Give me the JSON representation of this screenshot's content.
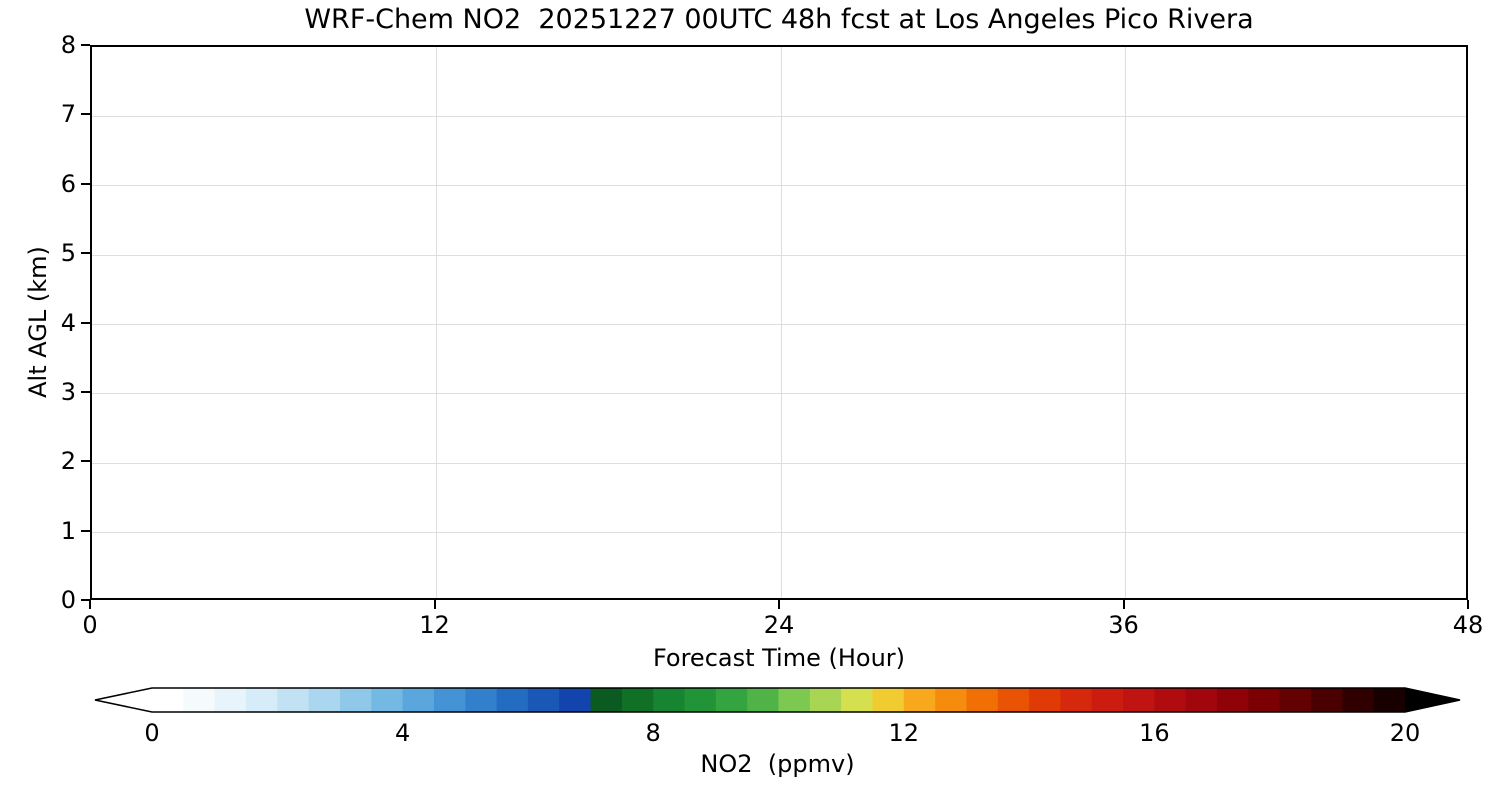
{
  "chart_data": {
    "type": "heatmap",
    "title": "WRF-Chem NO2  20251227 00UTC 48h fcst at Los Angeles Pico Rivera",
    "xlabel": "Forecast Time (Hour)",
    "ylabel": "Alt AGL (km)",
    "xlim": [
      0,
      48
    ],
    "ylim": [
      0,
      8
    ],
    "xticks": [
      0,
      12,
      24,
      36,
      48
    ],
    "yticks": [
      0,
      1,
      2,
      3,
      4,
      5,
      6,
      7,
      8
    ],
    "grid": true,
    "series": [],
    "plot_area_content": "empty (uniform white; no NO2 values above colorbar minimum are rendered)",
    "colorbar": {
      "label": "NO2  (ppmv)",
      "range": [
        0,
        20
      ],
      "ticks": [
        0,
        4,
        8,
        12,
        16,
        20
      ],
      "extend": "both",
      "under_color": "#ffffff",
      "over_color": "#000000",
      "colors": [
        "#ffffff",
        "#f5fafd",
        "#e8f4fb",
        "#d6ecf8",
        "#c2e2f4",
        "#aad6f0",
        "#90c8ea",
        "#74b8e4",
        "#5aa6dd",
        "#4494d5",
        "#3280cc",
        "#246cc2",
        "#1a58b8",
        "#1144ac",
        "#0a5a22",
        "#107026",
        "#168430",
        "#219438",
        "#34a440",
        "#50b348",
        "#7cc850",
        "#a8d654",
        "#d4e04e",
        "#f0cc30",
        "#f8a81c",
        "#f68c0e",
        "#f07006",
        "#e85404",
        "#e03a06",
        "#d6280c",
        "#cc1c10",
        "#c01412",
        "#b00c10",
        "#a0060c",
        "#8e0208",
        "#7a0004",
        "#620002",
        "#4a0000",
        "#300000",
        "#180000"
      ]
    }
  },
  "colors": {
    "background": "#ffffff",
    "axis": "#000000",
    "grid": "#dedede",
    "text": "#000000"
  }
}
